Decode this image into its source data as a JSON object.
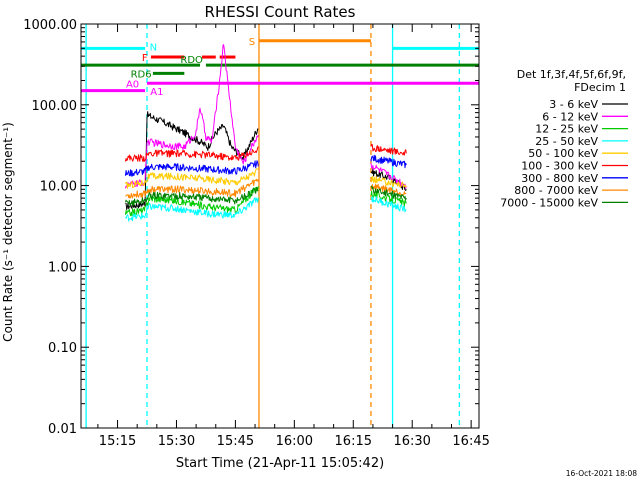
{
  "chart_data": {
    "type": "line",
    "title": "RHESSI Count Rates",
    "xlabel": "Start Time (21-Apr-11 15:05:42)",
    "ylabel": "Count Rate (s⁻¹ detector segment⁻¹)",
    "y_scale": "log",
    "ylim": [
      0.01,
      1000
    ],
    "y_ticks": [
      "0.01",
      "0.10",
      "1.00",
      "10.00",
      "100.00",
      "1000.00"
    ],
    "xlim": [
      "15:05:42",
      "16:47:00"
    ],
    "x_ticks": [
      "15:15",
      "15:30",
      "15:45",
      "16:00",
      "16:15",
      "16:30",
      "16:45"
    ],
    "grid": false,
    "legend_position": "right",
    "legend_header": [
      "Det 1f,3f,4f,5f,6f,9f,",
      "FDecim 1"
    ],
    "series": [
      {
        "name": "3 - 6 keV",
        "color": "#000000",
        "points": [
          [
            "15:17:00",
            5.5
          ],
          [
            "15:22:00",
            6
          ],
          [
            "15:22:30",
            75
          ],
          [
            "15:27:00",
            60
          ],
          [
            "15:32:00",
            45
          ],
          [
            "15:36:00",
            35
          ],
          [
            "15:38:00",
            30
          ],
          [
            "15:40:00",
            45
          ],
          [
            "15:42:00",
            55
          ],
          [
            "15:44:00",
            30
          ],
          [
            "15:47:00",
            22
          ],
          [
            "15:51:00",
            55
          ],
          [
            "16:19:30",
            15
          ],
          [
            "16:25:00",
            12
          ],
          [
            "16:28:30",
            9
          ]
        ]
      },
      {
        "name": "6 - 12 keV",
        "color": "#ff00ff",
        "points": [
          [
            "15:17:00",
            10
          ],
          [
            "15:22:00",
            11
          ],
          [
            "15:22:30",
            35
          ],
          [
            "15:27:00",
            32
          ],
          [
            "15:32:00",
            30
          ],
          [
            "15:35:00",
            45
          ],
          [
            "15:36:00",
            95
          ],
          [
            "15:37:30",
            40
          ],
          [
            "15:39:00",
            35
          ],
          [
            "15:41:00",
            200
          ],
          [
            "15:42:00",
            600
          ],
          [
            "15:43:00",
            200
          ],
          [
            "15:45:00",
            30
          ],
          [
            "15:47:00",
            19
          ],
          [
            "15:51:00",
            45
          ],
          [
            "16:19:30",
            18
          ],
          [
            "16:28:30",
            10
          ]
        ]
      },
      {
        "name": "12 - 25 keV",
        "color": "#00cc00",
        "points": [
          [
            "15:17:00",
            4.5
          ],
          [
            "15:22:00",
            5
          ],
          [
            "15:23:00",
            7
          ],
          [
            "15:30:00",
            6.5
          ],
          [
            "15:38:00",
            5.5
          ],
          [
            "15:45:00",
            5
          ],
          [
            "15:51:00",
            10
          ],
          [
            "16:19:30",
            8
          ],
          [
            "16:28:30",
            6
          ]
        ]
      },
      {
        "name": "25 - 50 keV",
        "color": "#00ffff",
        "points": [
          [
            "15:17:00",
            4
          ],
          [
            "15:22:00",
            4.2
          ],
          [
            "15:23:00",
            5.5
          ],
          [
            "15:30:00",
            5.2
          ],
          [
            "15:38:00",
            4.5
          ],
          [
            "15:45:00",
            4.3
          ],
          [
            "15:51:00",
            7
          ],
          [
            "16:19:30",
            7
          ],
          [
            "16:28:30",
            5
          ]
        ]
      },
      {
        "name": "50 - 100 keV",
        "color": "#ffcc00",
        "points": [
          [
            "15:17:00",
            10
          ],
          [
            "15:22:00",
            11
          ],
          [
            "15:23:00",
            13
          ],
          [
            "15:30:00",
            13
          ],
          [
            "15:38:00",
            12
          ],
          [
            "15:45:00",
            11
          ],
          [
            "15:51:00",
            15
          ],
          [
            "16:19:30",
            12
          ],
          [
            "16:28:30",
            10
          ]
        ]
      },
      {
        "name": "100 - 300 keV",
        "color": "#ff0000",
        "points": [
          [
            "15:17:00",
            22
          ],
          [
            "15:22:00",
            22
          ],
          [
            "15:23:00",
            25
          ],
          [
            "15:30:00",
            25
          ],
          [
            "15:38:00",
            24
          ],
          [
            "15:45:00",
            22
          ],
          [
            "15:51:00",
            28
          ],
          [
            "16:19:30",
            30
          ],
          [
            "16:28:30",
            25
          ]
        ]
      },
      {
        "name": "300 - 800 keV",
        "color": "#0000ff",
        "points": [
          [
            "15:17:00",
            14
          ],
          [
            "15:22:00",
            15
          ],
          [
            "15:23:00",
            17
          ],
          [
            "15:30:00",
            17
          ],
          [
            "15:38:00",
            16
          ],
          [
            "15:45:00",
            15
          ],
          [
            "15:51:00",
            19
          ],
          [
            "16:19:30",
            22
          ],
          [
            "16:28:30",
            18
          ]
        ]
      },
      {
        "name": "800 - 7000 keV",
        "color": "#ff8800",
        "points": [
          [
            "15:17:00",
            7.5
          ],
          [
            "15:22:00",
            8
          ],
          [
            "15:23:00",
            9
          ],
          [
            "15:30:00",
            9
          ],
          [
            "15:38:00",
            8.5
          ],
          [
            "15:45:00",
            8
          ],
          [
            "15:51:00",
            12
          ],
          [
            "16:19:30",
            10
          ],
          [
            "16:28:30",
            8
          ]
        ]
      },
      {
        "name": "7000 - 15000 keV",
        "color": "#008000",
        "points": [
          [
            "15:17:00",
            6
          ],
          [
            "15:22:00",
            6.5
          ],
          [
            "15:23:00",
            7.5
          ],
          [
            "15:30:00",
            7.5
          ],
          [
            "15:38:00",
            7
          ],
          [
            "15:45:00",
            6.5
          ],
          [
            "15:51:00",
            9
          ],
          [
            "16:19:30",
            9
          ],
          [
            "16:28:30",
            7
          ]
        ]
      }
    ],
    "flag_bars": [
      {
        "label": "N",
        "color": "#00ffff",
        "y": 500,
        "segments": [
          [
            "15:05:42",
            "15:22:00"
          ],
          [
            "16:25:00",
            "16:47:00"
          ]
        ]
      },
      {
        "label": "F",
        "color": "#ff0000",
        "y": 390,
        "segments": [
          [
            "15:23:30",
            "15:32:00"
          ],
          [
            "15:36:30",
            "15:40:00"
          ],
          [
            "15:41:00",
            "15:45:00"
          ]
        ]
      },
      {
        "label": "S",
        "color": "#ff8800",
        "y": 620,
        "segments": [
          [
            "15:51:00",
            "16:19:30"
          ]
        ]
      },
      {
        "label": "RDO",
        "color": "#008000",
        "y": 310,
        "segments": [
          [
            "15:05:42",
            "15:36:00"
          ],
          [
            "15:37:30",
            "16:47:00"
          ]
        ]
      },
      {
        "label": "RD6",
        "color": "#008000",
        "y": 245,
        "segments": [
          [
            "15:24:00",
            "15:32:00"
          ]
        ]
      },
      {
        "label": "A0",
        "color": "#ff00ff",
        "y": 150,
        "segments": [
          [
            "15:05:42",
            "15:22:00"
          ]
        ]
      },
      {
        "label": "A1",
        "color": "#ff00ff",
        "y": 185,
        "segments": [
          [
            "15:22:30",
            "16:47:00"
          ]
        ]
      }
    ],
    "vertical_markers": [
      {
        "time": "15:07:00",
        "color": "#00ffff",
        "style": "solid"
      },
      {
        "time": "15:22:30",
        "color": "#00ffff",
        "style": "dashed"
      },
      {
        "time": "15:51:00",
        "color": "#ff8800",
        "style": "solid"
      },
      {
        "time": "16:19:30",
        "color": "#ff8800",
        "style": "dashed"
      },
      {
        "time": "16:25:00",
        "color": "#00ffff",
        "style": "solid"
      },
      {
        "time": "16:42:00",
        "color": "#00ffff",
        "style": "dashed"
      }
    ],
    "footer_timestamp": "16-Oct-2021 18:08"
  }
}
